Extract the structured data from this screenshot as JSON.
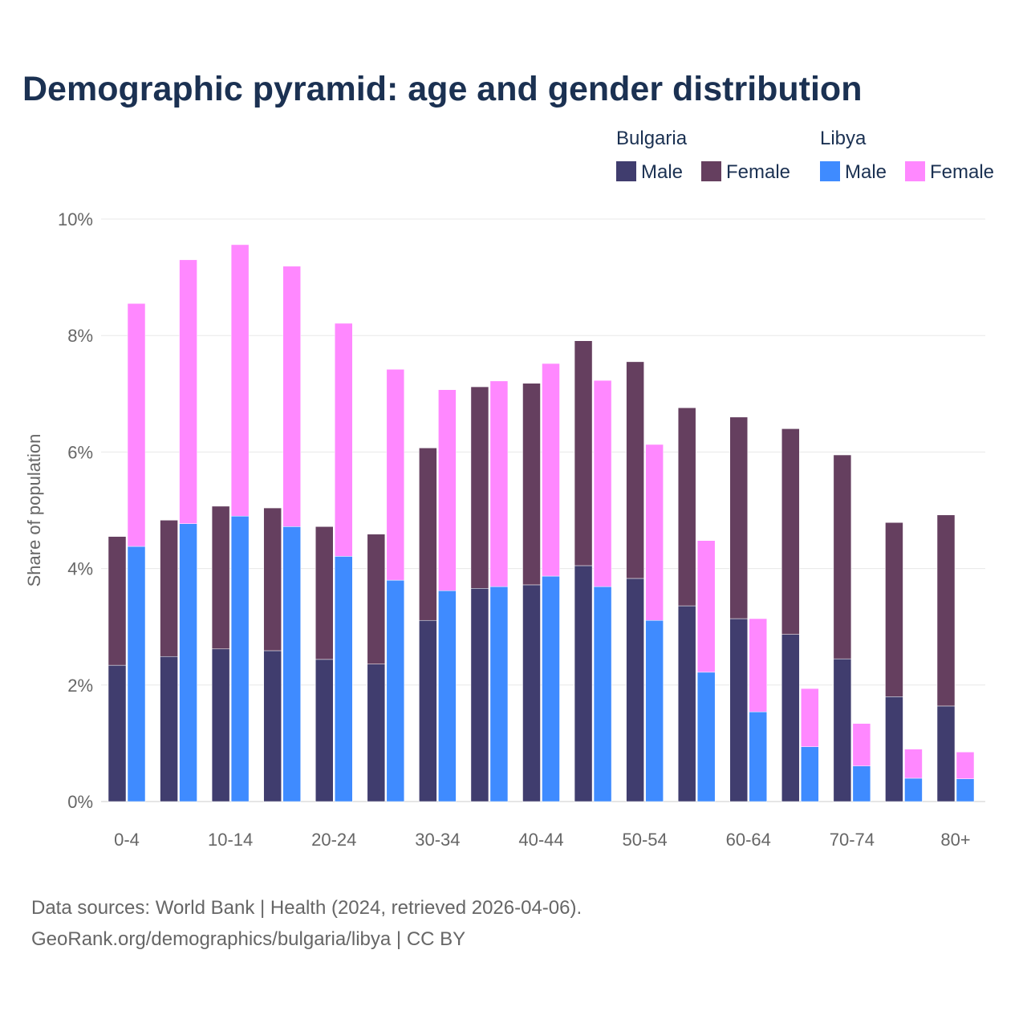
{
  "chart_data": {
    "type": "bar",
    "stacked": true,
    "title": "Demographic pyramid: age and gender distribution",
    "xlabel": "",
    "ylabel": "Share of population",
    "ylim": [
      0,
      10
    ],
    "yticks": [
      0,
      2,
      4,
      6,
      8,
      10
    ],
    "ytick_labels": [
      "0%",
      "2%",
      "4%",
      "6%",
      "8%",
      "10%"
    ],
    "grid": true,
    "legend_position": "top-right",
    "categories": [
      "0-4",
      "5-9",
      "10-14",
      "15-19",
      "20-24",
      "25-29",
      "30-34",
      "35-39",
      "40-44",
      "45-49",
      "50-54",
      "55-59",
      "60-64",
      "65-69",
      "70-74",
      "75-79",
      "80+"
    ],
    "xtick_labels": [
      "0-4",
      "10-14",
      "20-24",
      "30-34",
      "40-44",
      "50-54",
      "60-64",
      "70-74",
      "80+"
    ],
    "groups": [
      {
        "name": "Bulgaria",
        "series": [
          {
            "name": "Male",
            "color": "#403d6e",
            "values": [
              2.34,
              2.49,
              2.62,
              2.59,
              2.44,
              2.36,
              3.11,
              3.66,
              3.72,
              4.05,
              3.83,
              3.36,
              3.14,
              2.87,
              2.45,
              1.8,
              1.64
            ]
          },
          {
            "name": "Female",
            "color": "#653f5f",
            "values": [
              2.21,
              2.34,
              2.45,
              2.45,
              2.28,
              2.23,
              2.96,
              3.46,
              3.46,
              3.86,
              3.72,
              3.4,
              3.46,
              3.53,
              3.5,
              2.99,
              3.28
            ]
          }
        ]
      },
      {
        "name": "Libya",
        "series": [
          {
            "name": "Male",
            "color": "#3f8bff",
            "values": [
              4.38,
              4.77,
              4.9,
              4.72,
              4.21,
              3.8,
              3.62,
              3.69,
              3.87,
              3.69,
              3.11,
              2.22,
              1.54,
              0.94,
              0.61,
              0.4,
              0.39
            ]
          },
          {
            "name": "Female",
            "color": "#ff88ff",
            "values": [
              4.17,
              4.53,
              4.66,
              4.47,
              4.0,
              3.62,
              3.45,
              3.53,
              3.65,
              3.54,
              3.02,
              2.26,
              1.6,
              1.0,
              0.73,
              0.5,
              0.46
            ]
          }
        ]
      }
    ]
  },
  "footer": {
    "line1": "Data sources: World Bank | Health (2024, retrieved 2026-04-06).",
    "line2": "GeoRank.org/demographics/bulgaria/libya | CC BY"
  }
}
